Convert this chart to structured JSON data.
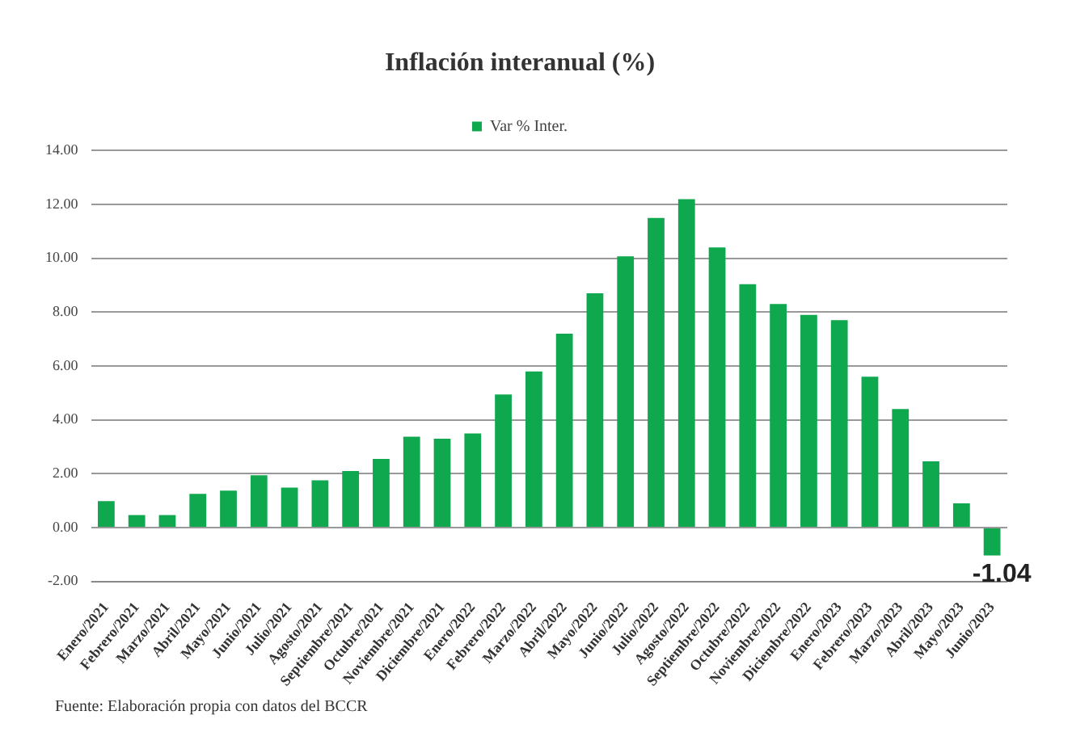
{
  "chart_data": {
    "type": "bar",
    "title": "Inflación interanual (%)",
    "categories": [
      "Enero/2021",
      "Febrero/2021",
      "Marzo/2021",
      "Abril/2021",
      "Mayo/2021",
      "Junio/2021",
      "Julio/2021",
      "Agosto/2021",
      "Septiembre/2021",
      "Octubre/2021",
      "Noviembre/2021",
      "Diciembre/2021",
      "Enero/2022",
      "Febrero/2022",
      "Marzo/2022",
      "Abril/2022",
      "Mayo/2022",
      "Junio/2022",
      "Julio/2022",
      "Agosto/2022",
      "Septiembre/2022",
      "Octubre/2022",
      "Noviembre/2022",
      "Diciembre/2022",
      "Enero/2023",
      "Febrero/2023",
      "Marzo/2023",
      "Abril/2023",
      "Mayo/2023",
      "Junio/2023"
    ],
    "series": [
      {
        "name": "Var % Inter.",
        "color": "#0fa84f",
        "values": [
          0.98,
          0.46,
          0.46,
          1.25,
          1.37,
          1.94,
          1.48,
          1.75,
          2.1,
          2.55,
          3.37,
          3.3,
          3.49,
          4.94,
          5.8,
          7.2,
          8.7,
          10.07,
          11.5,
          12.2,
          10.4,
          9.04,
          8.3,
          7.9,
          7.7,
          5.6,
          4.4,
          2.46,
          0.9,
          -1.04
        ],
        "value_labels": [
          null,
          null,
          null,
          null,
          null,
          null,
          null,
          null,
          null,
          null,
          null,
          null,
          null,
          null,
          null,
          null,
          null,
          null,
          null,
          null,
          null,
          null,
          null,
          null,
          null,
          null,
          null,
          null,
          null,
          "-1.04"
        ]
      }
    ],
    "ylim": [
      -2,
      14
    ],
    "yticks": [
      {
        "value": -2,
        "label": "-2.00"
      },
      {
        "value": 0,
        "label": "0.00"
      },
      {
        "value": 2,
        "label": "2.00"
      },
      {
        "value": 4,
        "label": "4.00"
      },
      {
        "value": 6,
        "label": "6.00"
      },
      {
        "value": 8,
        "label": "8.00"
      },
      {
        "value": 10,
        "label": "10.00"
      },
      {
        "value": 12,
        "label": "12.00"
      },
      {
        "value": 14,
        "label": "14.00"
      }
    ],
    "grid": "y",
    "legend": "top",
    "annotations": [
      "Fuente: Elaboración propia con datos del BCCR"
    ]
  }
}
